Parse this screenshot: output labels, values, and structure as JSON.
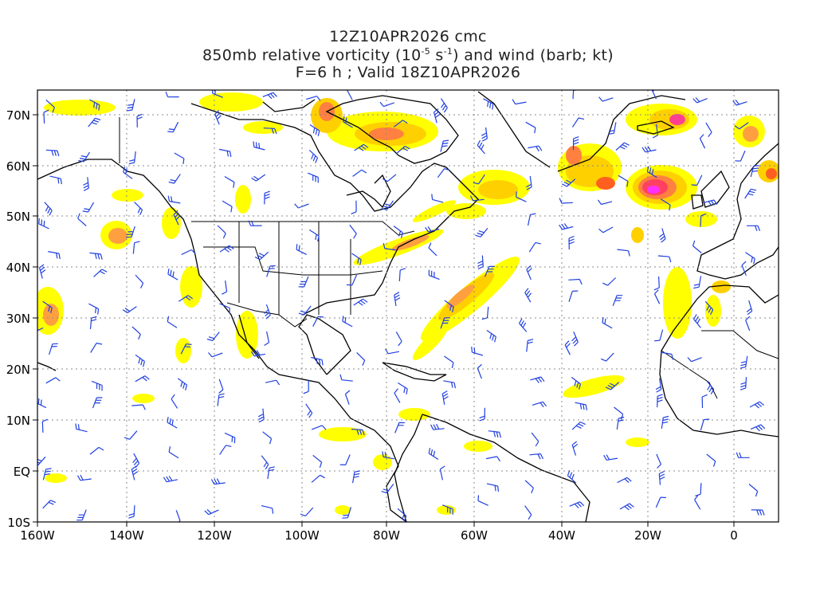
{
  "title": {
    "line1": "12Z10APR2026 cmc",
    "line2_prefix": "850mb relative vorticity (10",
    "line2_exp1": "-5",
    "line2_mid": " s",
    "line2_exp2": "-1",
    "line2_suffix": ") and wind (barb; kt)",
    "line3": "F=6 h ; Valid 18Z10APR2026"
  },
  "axes": {
    "lon_labels": [
      "160W",
      "140W",
      "120W",
      "100W",
      "80W",
      "60W",
      "40W",
      "20W",
      "0"
    ],
    "lat_labels": [
      "70N",
      "60N",
      "50N",
      "40N",
      "30N",
      "20N",
      "10N",
      "EQ",
      "10S"
    ]
  },
  "colors": {
    "vort_low": "#ffff00",
    "vort_mid": "#ffd000",
    "vort_mid2": "#ffa040",
    "vort_high": "#ff6020",
    "vort_max": "#ff40a0",
    "vort_peak": "#ff30ff",
    "barb": "#2040e0",
    "coast": "#000000",
    "grid": "#888888"
  }
}
